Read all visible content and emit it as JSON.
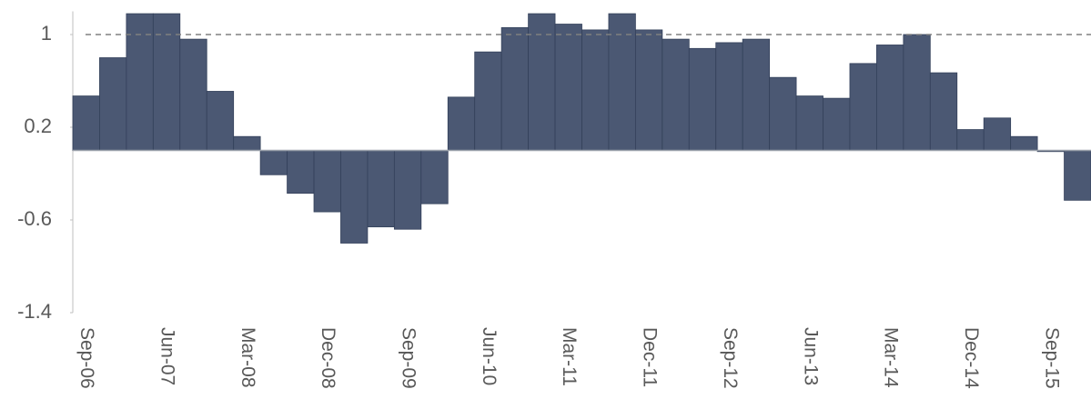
{
  "chart_data": {
    "type": "bar",
    "categories": [
      "Sep-06",
      null,
      null,
      "Jun-07",
      null,
      null,
      "Mar-08",
      null,
      null,
      "Dec-08",
      null,
      null,
      "Sep-09",
      null,
      null,
      "Jun-10",
      null,
      null,
      "Mar-11",
      null,
      null,
      "Dec-11",
      null,
      null,
      "Sep-12",
      null,
      null,
      "Jun-13",
      null,
      null,
      "Mar-14",
      null,
      null,
      "Dec-14",
      null,
      null,
      "Sep-15",
      null
    ],
    "values": [
      0.47,
      0.8,
      1.18,
      1.18,
      0.96,
      0.51,
      0.12,
      -0.21,
      -0.37,
      -0.53,
      -0.8,
      -0.66,
      -0.68,
      -0.46,
      0.46,
      0.85,
      1.06,
      1.18,
      1.09,
      1.04,
      1.18,
      1.04,
      0.96,
      0.88,
      0.93,
      0.96,
      0.63,
      0.47,
      0.45,
      0.75,
      0.91,
      1.0,
      0.67,
      0.18,
      0.28,
      0.12,
      -0.01,
      -0.43
    ],
    "color": "#4b5873",
    "reference_line": 1,
    "ylim": [
      -1.4,
      1.2
    ],
    "yticks": [
      -1.4,
      -0.6,
      0.2,
      1
    ]
  }
}
